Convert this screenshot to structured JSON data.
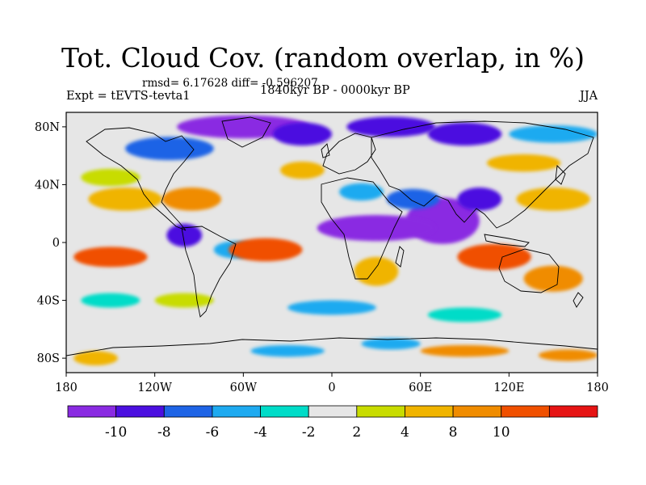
{
  "header": {
    "title": "Tot. Cloud Cov. (random overlap, in %)",
    "stats": "rmsd= 6.17628 diff= -0.596207",
    "experiment": "Expt = tEVTS-tevta1",
    "period": "1840kyr BP - 0000kyr BP",
    "season": "JJA"
  },
  "map": {
    "projection": "cylindrical-equidistant",
    "lon_range": [
      -180,
      180
    ],
    "lat_range": [
      -90,
      90
    ],
    "lon_ticks": [
      {
        "value": -180,
        "label": "180"
      },
      {
        "value": -120,
        "label": "120W"
      },
      {
        "value": -60,
        "label": "60W"
      },
      {
        "value": 0,
        "label": "0"
      },
      {
        "value": 60,
        "label": "60E"
      },
      {
        "value": 120,
        "label": "120E"
      },
      {
        "value": 180,
        "label": "180"
      }
    ],
    "lat_ticks": [
      {
        "value": 80,
        "label": "80N"
      },
      {
        "value": 40,
        "label": "40N"
      },
      {
        "value": 0,
        "label": "0"
      },
      {
        "value": -40,
        "label": "40S"
      },
      {
        "value": -80,
        "label": "80S"
      }
    ],
    "background_color": "#e6e6e6",
    "blobs": [
      {
        "lon": -60,
        "lat": 80,
        "rx": 45,
        "ry": 8,
        "value": -12
      },
      {
        "lon": -20,
        "lat": 75,
        "rx": 20,
        "ry": 8,
        "value": -9
      },
      {
        "lon": 40,
        "lat": 80,
        "rx": 30,
        "ry": 7,
        "value": -8
      },
      {
        "lon": 90,
        "lat": 75,
        "rx": 25,
        "ry": 8,
        "value": -8
      },
      {
        "lon": -110,
        "lat": 65,
        "rx": 30,
        "ry": 8,
        "value": -6
      },
      {
        "lon": 150,
        "lat": 75,
        "rx": 30,
        "ry": 6,
        "value": -5
      },
      {
        "lon": 75,
        "lat": 15,
        "rx": 25,
        "ry": 16,
        "value": -12
      },
      {
        "lon": 30,
        "lat": 10,
        "rx": 40,
        "ry": 9,
        "value": -12
      },
      {
        "lon": 100,
        "lat": 30,
        "rx": 15,
        "ry": 8,
        "value": -9
      },
      {
        "lon": 55,
        "lat": 30,
        "rx": 18,
        "ry": 7,
        "value": -7
      },
      {
        "lon": -100,
        "lat": 5,
        "rx": 12,
        "ry": 8,
        "value": -8
      },
      {
        "lon": -65,
        "lat": -5,
        "rx": 15,
        "ry": 6,
        "value": -5
      },
      {
        "lon": -140,
        "lat": 30,
        "rx": 25,
        "ry": 8,
        "value": 6
      },
      {
        "lon": -150,
        "lat": 45,
        "rx": 20,
        "ry": 6,
        "value": 3
      },
      {
        "lon": -95,
        "lat": 30,
        "rx": 20,
        "ry": 8,
        "value": 8
      },
      {
        "lon": -45,
        "lat": -5,
        "rx": 25,
        "ry": 8,
        "value": 11
      },
      {
        "lon": -150,
        "lat": -10,
        "rx": 25,
        "ry": 7,
        "value": 10
      },
      {
        "lon": 110,
        "lat": -10,
        "rx": 25,
        "ry": 9,
        "value": 11
      },
      {
        "lon": 150,
        "lat": -25,
        "rx": 20,
        "ry": 9,
        "value": 8
      },
      {
        "lon": 150,
        "lat": 30,
        "rx": 25,
        "ry": 8,
        "value": 4
      },
      {
        "lon": 130,
        "lat": 55,
        "rx": 25,
        "ry": 6,
        "value": 5
      },
      {
        "lon": 30,
        "lat": -20,
        "rx": 15,
        "ry": 10,
        "value": 5
      },
      {
        "lon": 20,
        "lat": 35,
        "rx": 15,
        "ry": 6,
        "value": -5
      },
      {
        "lon": -20,
        "lat": 50,
        "rx": 15,
        "ry": 6,
        "value": 4
      },
      {
        "lon": 0,
        "lat": -45,
        "rx": 30,
        "ry": 5,
        "value": -4
      },
      {
        "lon": 90,
        "lat": -50,
        "rx": 25,
        "ry": 5,
        "value": -3
      },
      {
        "lon": -150,
        "lat": -40,
        "rx": 20,
        "ry": 5,
        "value": -3
      },
      {
        "lon": -100,
        "lat": -40,
        "rx": 20,
        "ry": 5,
        "value": 3
      },
      {
        "lon": -160,
        "lat": -80,
        "rx": 15,
        "ry": 5,
        "value": 6
      },
      {
        "lon": 90,
        "lat": -75,
        "rx": 30,
        "ry": 4,
        "value": 8
      },
      {
        "lon": 160,
        "lat": -78,
        "rx": 20,
        "ry": 4,
        "value": 9
      },
      {
        "lon": -30,
        "lat": -75,
        "rx": 25,
        "ry": 4,
        "value": -5
      },
      {
        "lon": 40,
        "lat": -70,
        "rx": 20,
        "ry": 4,
        "value": -4
      }
    ]
  },
  "colorbar": {
    "colors": [
      "#8a2be2",
      "#4b0fe0",
      "#1e64e6",
      "#1eaaf0",
      "#00dcc8",
      "#e6e6e6",
      "#c8dc00",
      "#f0b400",
      "#f08c00",
      "#f05000",
      "#e61414"
    ],
    "labels": [
      "-10",
      "-8",
      "-6",
      "-4",
      "-2",
      "2",
      "4",
      "8",
      "10"
    ]
  }
}
